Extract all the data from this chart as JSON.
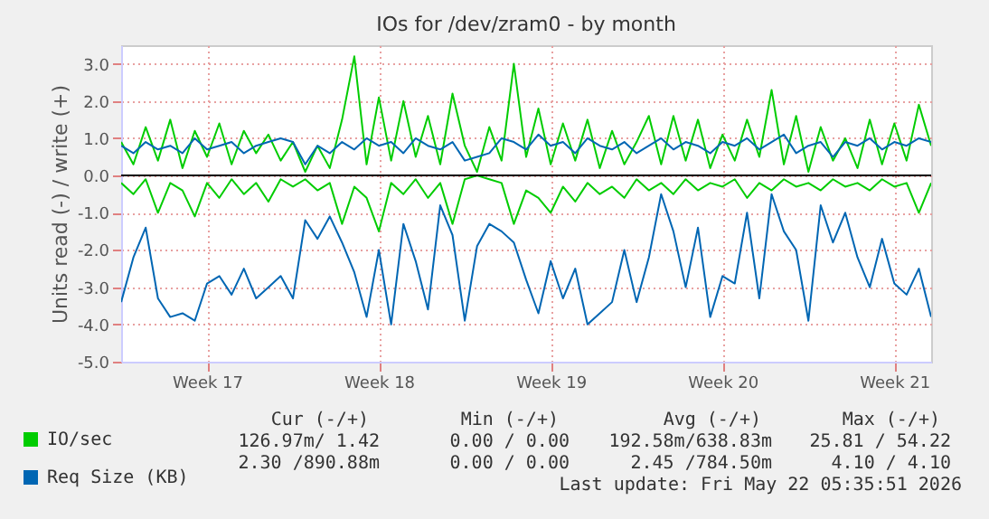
{
  "chart_data": {
    "type": "line",
    "title": "IOs for /dev/zram0 - by month",
    "ylabel": "Units read (-) / write (+)",
    "categories": [
      null,
      null,
      null,
      null,
      null,
      null,
      null,
      "Week 17",
      null,
      null,
      null,
      null,
      null,
      null,
      null,
      null,
      null,
      null,
      null,
      null,
      null,
      "Week 18",
      null,
      null,
      null,
      null,
      null,
      null,
      null,
      null,
      null,
      null,
      null,
      null,
      null,
      "Week 19",
      null,
      null,
      null,
      null,
      null,
      null,
      null,
      null,
      null,
      null,
      null,
      null,
      null,
      "Week 20",
      null,
      null,
      null,
      null,
      null,
      null,
      null,
      null,
      null,
      null,
      null,
      null,
      null,
      "Week 21",
      null,
      null,
      null
    ],
    "series": [
      {
        "name": "IO/sec",
        "color": "#00cc00",
        "values": [
          0.9,
          0.3,
          1.3,
          0.4,
          1.5,
          0.2,
          1.2,
          0.5,
          1.4,
          0.3,
          1.2,
          0.6,
          1.1,
          0.4,
          0.9,
          0.1,
          0.8,
          0.2,
          1.5,
          3.2,
          0.3,
          2.1,
          0.4,
          2.0,
          0.5,
          1.6,
          0.3,
          2.2,
          0.8,
          0.1,
          1.3,
          0.4,
          3.0,
          0.5,
          1.8,
          0.3,
          1.4,
          0.4,
          1.5,
          0.2,
          1.2,
          0.3,
          0.9,
          1.6,
          0.3,
          1.6,
          0.4,
          1.5,
          0.2,
          1.1,
          0.4,
          1.5,
          0.5,
          2.3,
          0.3,
          1.6,
          0.1,
          1.3,
          0.4,
          1.0,
          0.2,
          1.5,
          0.3,
          1.4,
          0.4,
          1.9,
          0.8
        ]
      },
      {
        "color": "#00cc00",
        "values": [
          -0.2,
          -0.5,
          -0.1,
          -1.0,
          -0.2,
          -0.4,
          -1.1,
          -0.2,
          -0.6,
          -0.1,
          -0.5,
          -0.2,
          -0.7,
          -0.1,
          -0.3,
          -0.1,
          -0.4,
          -0.2,
          -1.3,
          -0.3,
          -0.6,
          -1.5,
          -0.2,
          -0.5,
          -0.1,
          -0.6,
          -0.2,
          -1.3,
          -0.1,
          0.0,
          -0.1,
          -0.2,
          -1.3,
          -0.4,
          -0.6,
          -1.0,
          -0.3,
          -0.7,
          -0.2,
          -0.5,
          -0.3,
          -0.6,
          -0.1,
          -0.4,
          -0.2,
          -0.5,
          -0.1,
          -0.4,
          -0.2,
          -0.3,
          -0.1,
          -0.6,
          -0.2,
          -0.4,
          -0.1,
          -0.3,
          -0.2,
          -0.4,
          -0.1,
          -0.3,
          -0.2,
          -0.4,
          -0.1,
          -0.3,
          -0.2,
          -1.0,
          -0.2
        ]
      },
      {
        "name": "Req Size (KB)",
        "color": "#0066b3",
        "values": [
          0.8,
          0.6,
          0.9,
          0.7,
          0.8,
          0.6,
          1.0,
          0.7,
          0.8,
          0.9,
          0.6,
          0.8,
          0.9,
          1.0,
          0.9,
          0.3,
          0.8,
          0.6,
          0.9,
          0.7,
          1.0,
          0.8,
          0.9,
          0.6,
          1.0,
          0.8,
          0.7,
          0.9,
          0.4,
          0.5,
          0.6,
          1.0,
          0.9,
          0.7,
          1.1,
          0.8,
          0.9,
          0.6,
          1.0,
          0.8,
          0.7,
          0.9,
          0.6,
          0.8,
          1.0,
          0.7,
          0.9,
          0.8,
          0.6,
          0.9,
          0.8,
          1.0,
          0.7,
          0.9,
          1.1,
          0.6,
          0.8,
          0.9,
          0.5,
          0.9,
          0.8,
          1.0,
          0.7,
          0.9,
          0.8,
          1.0,
          0.9
        ]
      },
      {
        "color": "#0066b3",
        "values": [
          -3.4,
          -2.2,
          -1.4,
          -3.3,
          -3.8,
          -3.7,
          -3.9,
          -2.9,
          -2.7,
          -3.2,
          -2.5,
          -3.3,
          -3.0,
          -2.7,
          -3.3,
          -1.2,
          -1.7,
          -1.1,
          -1.8,
          -2.6,
          -3.8,
          -2.0,
          -4.0,
          -1.3,
          -2.3,
          -3.6,
          -0.8,
          -1.6,
          -3.9,
          -1.9,
          -1.3,
          -1.5,
          -1.8,
          -2.8,
          -3.7,
          -2.3,
          -3.3,
          -2.5,
          -4.0,
          -3.7,
          -3.4,
          -2.0,
          -3.4,
          -2.2,
          -0.5,
          -1.5,
          -3.0,
          -1.4,
          -3.8,
          -2.7,
          -2.9,
          -1.0,
          -3.3,
          -0.5,
          -1.5,
          -2.0,
          -3.9,
          -0.8,
          -1.8,
          -1.0,
          -2.2,
          -3.0,
          -1.7,
          -2.9,
          -3.2,
          -2.5,
          -3.8
        ]
      }
    ],
    "ylim": [
      -5,
      3.5
    ],
    "yticks": [
      {
        "value": -5,
        "label": "-5.0"
      },
      {
        "value": -4,
        "label": "-4.0"
      },
      {
        "value": -3,
        "label": "-3.0"
      },
      {
        "value": -2,
        "label": "-2.0"
      },
      {
        "value": -1,
        "label": "-1.0"
      },
      {
        "value": 0,
        "label": "0.0"
      },
      {
        "value": 1,
        "label": "1.0"
      },
      {
        "value": 2,
        "label": "2.0"
      },
      {
        "value": 3,
        "label": "3.0"
      }
    ],
    "ref_lines": [
      {
        "axis": "y",
        "value": 0,
        "color": "#000000"
      }
    ],
    "grid": true,
    "legend": "bottom left",
    "marker": "none",
    "line_style": "solid",
    "annotations": [
      "Cur (-/+)",
      "Min (-/+)",
      "Avg (-/+)",
      "Max (-/+)",
      "126.97m/  1.42",
      "0.00 /  0.00",
      "192.58m/638.83m",
      "25.81 / 54.22",
      "2.30 /890.88m",
      "0.00 /  0.00",
      "2.45 /784.50m",
      "4.10 /  4.10",
      "Last update: Fri May 22 05:35:51 2026"
    ]
  }
}
